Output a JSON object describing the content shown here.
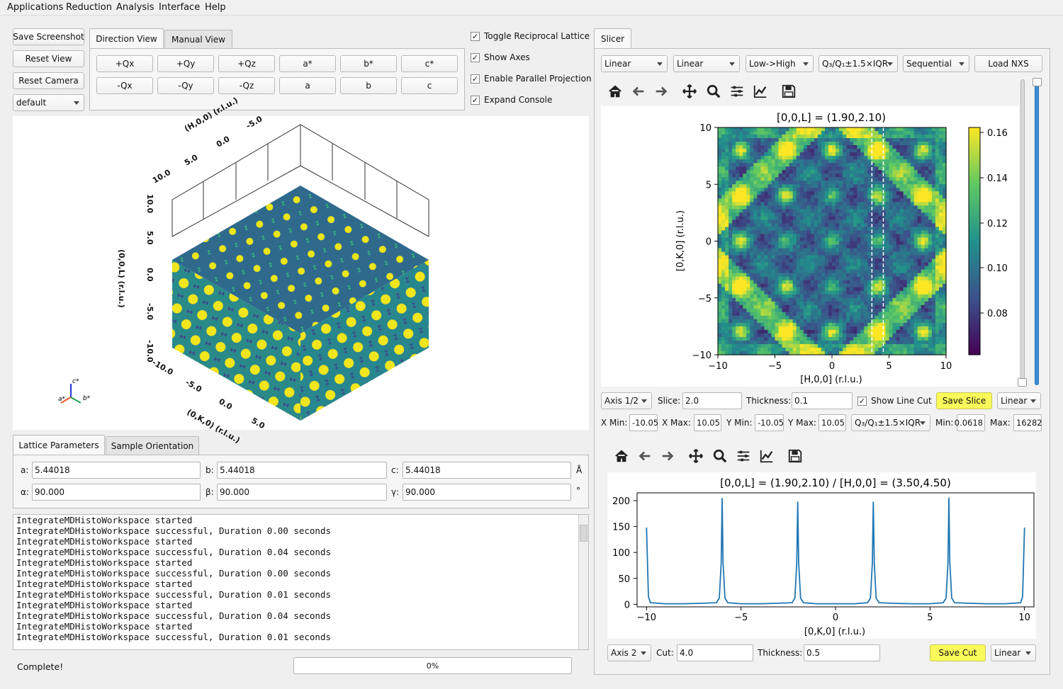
{
  "menu": [
    "Applications",
    "Reduction",
    "Analysis",
    "Interface",
    "Help"
  ],
  "left_buttons": {
    "save_screenshot": "Save Screenshot",
    "reset_view": "Reset View",
    "reset_camera": "Reset Camera",
    "preset": "default"
  },
  "view_tabs": [
    "Direction View",
    "Manual View"
  ],
  "direction_buttons": [
    "+Qx",
    "+Qy",
    "+Qz",
    "a*",
    "b*",
    "c*",
    "-Qx",
    "-Qy",
    "-Qz",
    "a",
    "b",
    "c"
  ],
  "checkboxes": [
    "Toggle Reciprocal Lattice",
    "Show Axes",
    "Enable Parallel Projection",
    "Expand Console"
  ],
  "view3d": {
    "axis_h": "(H,0,0) (r.l.u.)",
    "axis_k": "(0,K,0) (r.l.u.)",
    "axis_l": "(0,0,L) (r.l.u.)",
    "ticks_top": [
      "10.0",
      "5.0",
      "0.0",
      "-5.0"
    ],
    "ticks_left": [
      "10.0",
      "5.0",
      "0.0",
      "-5.0",
      "-10.0"
    ],
    "ticks_bottom": [
      "-10.0",
      "-5.0",
      "0.0",
      "5.0"
    ],
    "triad": [
      "c*",
      "a*",
      "b*"
    ]
  },
  "param_tabs": [
    "Lattice Parameters",
    "Sample Orientation"
  ],
  "lattice": {
    "a_label": "a:",
    "a": "5.44018",
    "b_label": "b:",
    "b": "5.44018",
    "c_label": "c:",
    "c": "5.44018",
    "len_unit": "Å",
    "alpha_label": "α:",
    "alpha": "90.000",
    "beta_label": "β:",
    "beta": "90.000",
    "gamma_label": "γ:",
    "gamma": "90.000",
    "ang_unit": "°"
  },
  "console": [
    "IntegrateMDHistoWorkspace started",
    "IntegrateMDHistoWorkspace successful, Duration 0.00 seconds",
    "IntegrateMDHistoWorkspace started",
    "IntegrateMDHistoWorkspace successful, Duration 0.04 seconds",
    "IntegrateMDHistoWorkspace started",
    "IntegrateMDHistoWorkspace successful, Duration 0.00 seconds",
    "IntegrateMDHistoWorkspace started",
    "IntegrateMDHistoWorkspace successful, Duration 0.01 seconds",
    "IntegrateMDHistoWorkspace started",
    "IntegrateMDHistoWorkspace successful, Duration 0.04 seconds",
    "IntegrateMDHistoWorkspace started",
    "IntegrateMDHistoWorkspace successful, Duration 0.01 seconds"
  ],
  "status": {
    "text": "Complete!",
    "progress_text": "0%",
    "progress": 0
  },
  "slicer": {
    "tab": "Slicer",
    "combos": [
      "Linear",
      "Linear",
      "Low->High",
      "Q₃/Q₁±1.5×IQR",
      "Sequential"
    ],
    "load_nxs": "Load NXS",
    "slice_controls": {
      "axis": "Axis 1/2",
      "slice_label": "Slice:",
      "slice": "2.0",
      "thickness_label": "Thickness:",
      "thickness": "0.1",
      "show_line_cut": "Show Line Cut",
      "save_slice": "Save Slice",
      "scale": "Linear"
    },
    "limits": {
      "xmin_label": "X Min:",
      "xmin": "-10.05",
      "xmax_label": "X Max:",
      "xmax": "10.05",
      "ymin_label": "Y Min:",
      "ymin": "-10.05",
      "ymax_label": "Y Max:",
      "ymax": "10.05",
      "clim": "Q₃/Q₁±1.5×IQR",
      "min_label": "Min:",
      "min": "0.0618",
      "max_label": "Max:",
      "max": "16282"
    },
    "cut_controls": {
      "axis": "Axis 2",
      "cut_label": "Cut:",
      "cut": "4.0",
      "thickness_label": "Thickness:",
      "thickness": "0.5",
      "save_cut": "Save Cut",
      "scale": "Linear"
    }
  },
  "chart_data": [
    {
      "type": "heatmap",
      "title": "[0,0,L] = (1.90,2.10)",
      "xlabel": "[H,0,0] (r.l.u.)",
      "ylabel": "[0,K,0] (r.l.u.)",
      "xlim": [
        -10,
        10
      ],
      "ylim": [
        -10,
        10
      ],
      "xticks": [
        "−10",
        "−5",
        "0",
        "5",
        "10"
      ],
      "yticks": [
        "10",
        "5",
        "0",
        "−5",
        "−10"
      ],
      "colorbar_ticks": [
        "0.16",
        "0.14",
        "0.12",
        "0.10",
        "0.08"
      ],
      "colormap": "viridis",
      "line_cut": [
        3.5,
        4.5
      ]
    },
    {
      "type": "line",
      "title": "[0,0,L] = (1.90,2.10) / [H,0,0] = (3.50,4.50)",
      "xlabel": "[0,K,0] (r.l.u.)",
      "ylabel": "",
      "xlim": [
        -10.5,
        10.5
      ],
      "ylim": [
        -5,
        215
      ],
      "xticks": [
        "−10",
        "−5",
        "0",
        "5",
        "10"
      ],
      "yticks": [
        "200",
        "150",
        "100",
        "50",
        "0"
      ],
      "color": "#1f77b4",
      "series": [
        {
          "x": [
            -10,
            -9.9,
            -9.8,
            -9,
            -8,
            -7,
            -6.3,
            -6.15,
            -6.05,
            -6,
            -5.95,
            -5.85,
            -5.7,
            -5,
            -4,
            -3,
            -2.3,
            -2.15,
            -2.05,
            -2,
            -1.95,
            -1.85,
            -1.7,
            -1,
            0,
            1,
            1.7,
            1.85,
            1.95,
            2,
            2.05,
            2.15,
            2.3,
            3,
            4,
            5,
            5.7,
            5.85,
            5.95,
            6,
            6.05,
            6.15,
            6.3,
            7,
            8,
            9,
            9.8,
            9.9,
            10
          ],
          "y": [
            148,
            15,
            3,
            1,
            1,
            2,
            3,
            12,
            80,
            205,
            80,
            12,
            3,
            1,
            1,
            2,
            3,
            12,
            80,
            198,
            80,
            12,
            3,
            1,
            1,
            1,
            3,
            12,
            80,
            198,
            80,
            12,
            3,
            2,
            1,
            1,
            3,
            12,
            80,
            206,
            80,
            12,
            3,
            2,
            1,
            1,
            3,
            15,
            148
          ]
        }
      ]
    }
  ]
}
